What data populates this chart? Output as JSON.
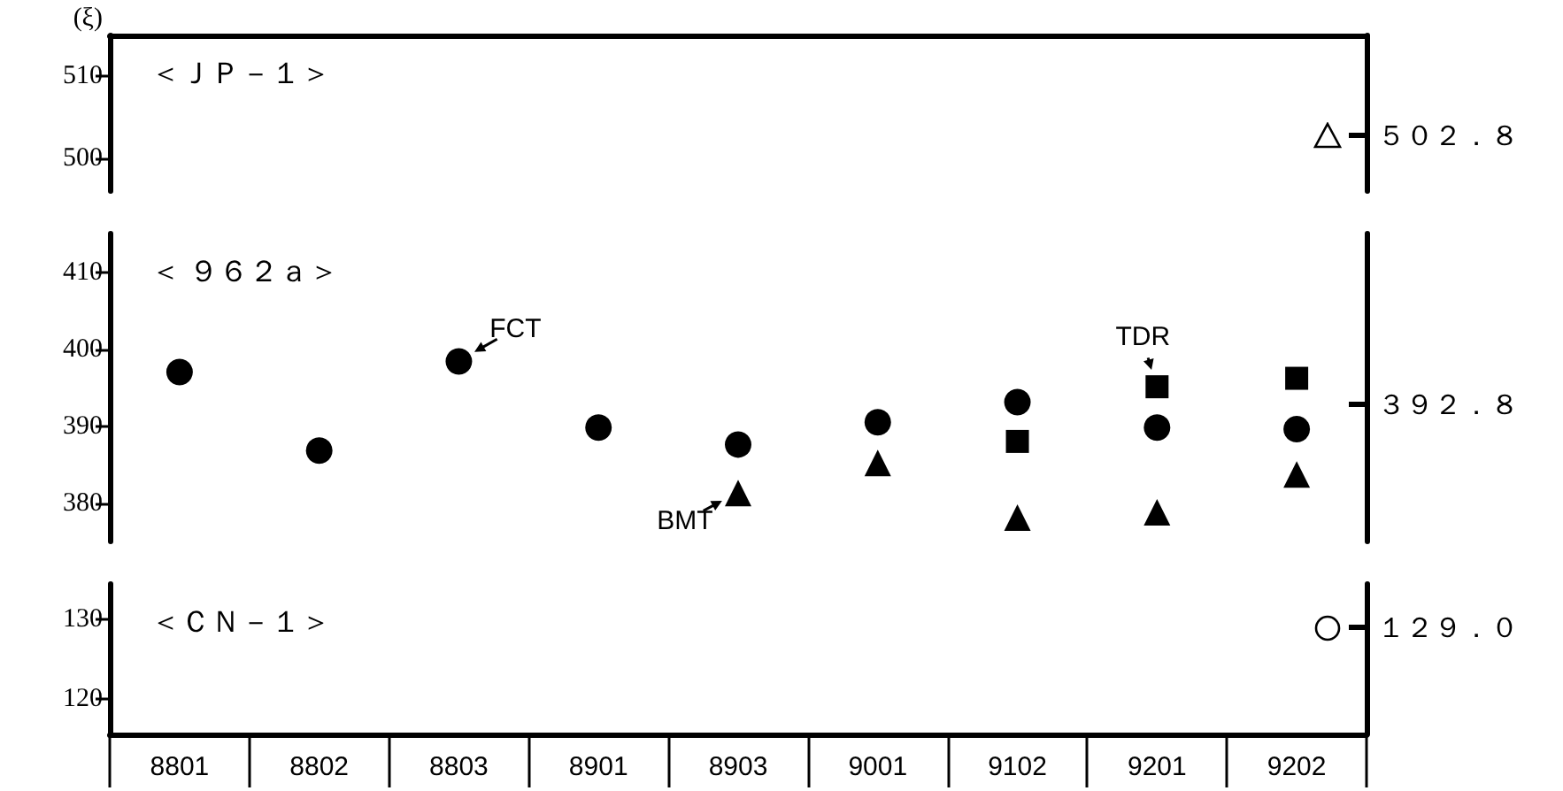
{
  "chart_data": [
    {
      "type": "scatter",
      "title": "＜ＪＰ－１＞",
      "ylabel": "(ξ)",
      "categories": [
        "8801",
        "8802",
        "8803",
        "8901",
        "8903",
        "9001",
        "9102",
        "9201",
        "9202"
      ],
      "ylim": [
        496,
        515
      ],
      "yticks": [
        500,
        510
      ],
      "ref_lines": [
        {
          "axis": "y",
          "value": 502.8,
          "label": "５０２．８"
        }
      ],
      "marker": "triangle",
      "tick_labels": "y"
    },
    {
      "type": "scatter",
      "title": "＜ ９６２ａ＞",
      "categories": [
        "8801",
        "8802",
        "8803",
        "8901",
        "8903",
        "9001",
        "9102",
        "9201",
        "9202"
      ],
      "ylim": [
        375,
        415
      ],
      "yticks": [
        380,
        390,
        400,
        410
      ],
      "ref_lines": [
        {
          "axis": "y",
          "value": 392.8,
          "label": "３９２．８"
        }
      ],
      "tick_labels": "y",
      "series": [
        {
          "color": "#000000",
          "marker": "circle",
          "values": [
            397.0,
            386.8,
            398.4,
            389.8,
            387.6,
            390.5,
            393.1,
            389.8,
            389.6
          ]
        },
        {
          "color": "#000000",
          "marker": "square",
          "values": [
            null,
            null,
            null,
            null,
            null,
            null,
            388.0,
            395.1,
            396.2
          ]
        },
        {
          "color": "#000000",
          "marker": "triangle",
          "values": [
            null,
            null,
            null,
            null,
            381.3,
            385.2,
            378.1,
            378.8,
            383.7
          ]
        }
      ],
      "annotations": [
        {
          "text": "FCT",
          "x": "8803",
          "y": 398.4
        },
        {
          "text": "BMT",
          "x": "8903",
          "y": 381.3
        },
        {
          "text": "TDR",
          "x": "9201",
          "y": 395.1
        }
      ]
    },
    {
      "type": "scatter",
      "title": "＜ＣＮ－１＞",
      "categories": [
        "8801",
        "8802",
        "8803",
        "8901",
        "8903",
        "9001",
        "9102",
        "9201",
        "9202"
      ],
      "ylim": [
        115.5,
        134.5
      ],
      "yticks": [
        120,
        130
      ],
      "ref_lines": [
        {
          "axis": "y",
          "value": 129.0,
          "label": "１２９．０"
        }
      ],
      "marker": "circle"
    }
  ]
}
